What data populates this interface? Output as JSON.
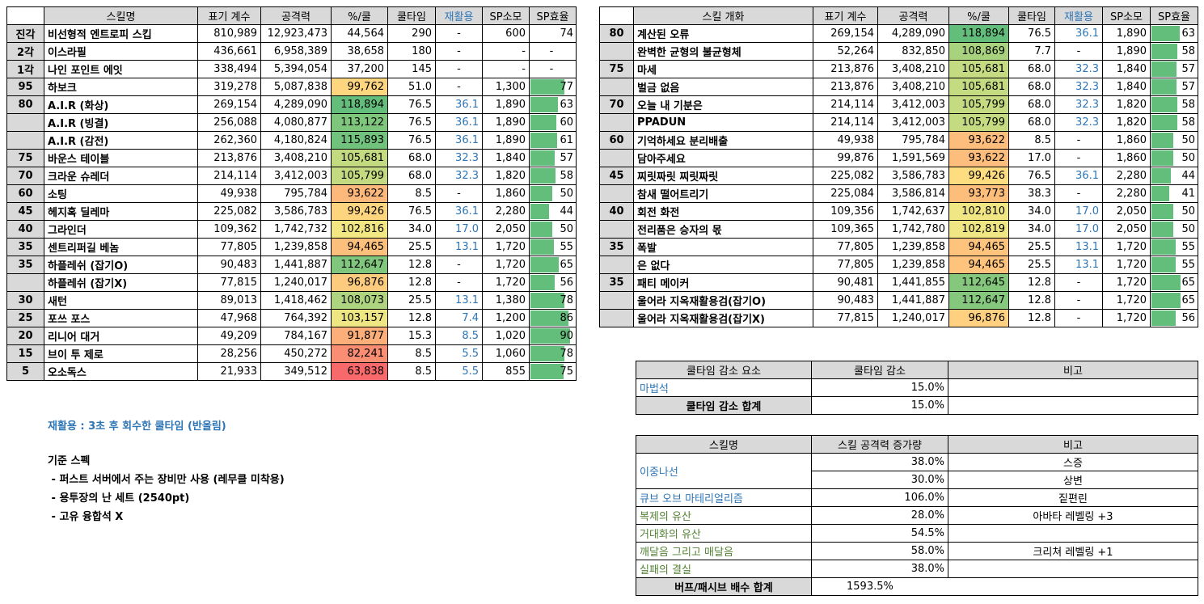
{
  "left_table": {
    "headers": [
      "스킬명",
      "표기 계수",
      "공격력",
      "%/쿨",
      "쿨타임",
      "재활용",
      "SP소모",
      "SP효율"
    ],
    "rows": [
      {
        "lv": "진각",
        "name": "비선형적 엔트로피 스킵",
        "coef": "810,989",
        "atk": "12,923,473",
        "pct": "44,564",
        "cd": "290",
        "re": "-",
        "sp": "600",
        "eff": "74",
        "bar": 0,
        "color": ""
      },
      {
        "lv": "2각",
        "name": "이스라필",
        "coef": "436,661",
        "atk": "6,958,389",
        "pct": "38,658",
        "cd": "180",
        "re": "-",
        "sp": "-",
        "eff": "-",
        "bar": 0,
        "color": ""
      },
      {
        "lv": "1각",
        "name": "나인 포인트 에잇",
        "coef": "338,494",
        "atk": "5,394,054",
        "pct": "37,200",
        "cd": "145",
        "re": "-",
        "sp": "-",
        "eff": "-",
        "bar": 0,
        "color": ""
      },
      {
        "lv": "95",
        "name": "하보크",
        "coef": "319,278",
        "atk": "5,087,838",
        "pct": "99,762",
        "cd": "51.0",
        "re": "-",
        "sp": "1,300",
        "eff": "77",
        "bar": 0.77,
        "color": "#fed680"
      },
      {
        "lv": "80",
        "name": "A.I.R (화상)",
        "coef": "269,154",
        "atk": "4,289,090",
        "pct": "118,894",
        "cd": "76.5",
        "re": "36.1",
        "sp": "1,890",
        "eff": "63",
        "bar": 0.63,
        "color": "#63be7b"
      },
      {
        "lv": "",
        "name": "A.I.R (빙결)",
        "coef": "256,088",
        "atk": "4,080,877",
        "pct": "113,122",
        "cd": "76.5",
        "re": "36.1",
        "sp": "1,890",
        "eff": "60",
        "bar": 0.6,
        "color": "#7fc67d"
      },
      {
        "lv": "",
        "name": "A.I.R (감전)",
        "coef": "262,360",
        "atk": "4,180,824",
        "pct": "115,893",
        "cd": "76.5",
        "re": "36.1",
        "sp": "1,890",
        "eff": "61",
        "bar": 0.61,
        "color": "#71c27c"
      },
      {
        "lv": "75",
        "name": "바운스 테이블",
        "coef": "213,876",
        "atk": "3,408,210",
        "pct": "105,681",
        "cd": "68.0",
        "re": "32.3",
        "sp": "1,840",
        "eff": "57",
        "bar": 0.57,
        "color": "#c3da80"
      },
      {
        "lv": "70",
        "name": "크라운 슈레더",
        "coef": "214,114",
        "atk": "3,412,003",
        "pct": "105,799",
        "cd": "68.0",
        "re": "32.3",
        "sp": "1,820",
        "eff": "58",
        "bar": 0.58,
        "color": "#c3da80"
      },
      {
        "lv": "60",
        "name": "소팅",
        "coef": "49,938",
        "atk": "795,784",
        "pct": "93,622",
        "cd": "8.5",
        "re": "-",
        "sp": "1,860",
        "eff": "50",
        "bar": 0.5,
        "color": "#fdb97b"
      },
      {
        "lv": "45",
        "name": "헤지혹 딜레마",
        "coef": "225,082",
        "atk": "3,586,783",
        "pct": "99,426",
        "cd": "76.5",
        "re": "36.1",
        "sp": "2,280",
        "eff": "44",
        "bar": 0.44,
        "color": "#fdd57f"
      },
      {
        "lv": "40",
        "name": "그라인더",
        "coef": "109,362",
        "atk": "1,742,732",
        "pct": "102,816",
        "cd": "34.0",
        "re": "17.0",
        "sp": "2,050",
        "eff": "50",
        "bar": 0.5,
        "color": "#f2e783"
      },
      {
        "lv": "35",
        "name": "센트리퍼길 베놈",
        "coef": "77,805",
        "atk": "1,239,858",
        "pct": "94,465",
        "cd": "25.5",
        "re": "13.1",
        "sp": "1,720",
        "eff": "55",
        "bar": 0.55,
        "color": "#fdc07c"
      },
      {
        "lv": "35",
        "name": "하플레쉬 (잡기O)",
        "coef": "90,483",
        "atk": "1,441,887",
        "pct": "112,647",
        "cd": "12.8",
        "re": "-",
        "sp": "1,720",
        "eff": "65",
        "bar": 0.65,
        "color": "#80c77d"
      },
      {
        "lv": "",
        "name": "하플레쉬 (잡기X)",
        "coef": "77,815",
        "atk": "1,240,017",
        "pct": "96,876",
        "cd": "12.8",
        "re": "-",
        "sp": "1,720",
        "eff": "56",
        "bar": 0.56,
        "color": "#fdcb7e"
      },
      {
        "lv": "30",
        "name": "새턴",
        "coef": "89,013",
        "atk": "1,418,462",
        "pct": "108,073",
        "cd": "25.5",
        "re": "13.1",
        "sp": "1,380",
        "eff": "78",
        "bar": 0.78,
        "color": "#afd47f"
      },
      {
        "lv": "25",
        "name": "포쓰 포스",
        "coef": "47,968",
        "atk": "764,392",
        "pct": "103,157",
        "cd": "12.8",
        "re": "7.4",
        "sp": "1,200",
        "eff": "86",
        "bar": 0.86,
        "color": "#eee583"
      },
      {
        "lv": "20",
        "name": "리니어 대거",
        "coef": "49,209",
        "atk": "784,167",
        "pct": "91,877",
        "cd": "15.3",
        "re": "8.5",
        "sp": "1,020",
        "eff": "90",
        "bar": 0.9,
        "color": "#fcaf79"
      },
      {
        "lv": "15",
        "name": "브이 투 제로",
        "coef": "28,256",
        "atk": "450,272",
        "pct": "82,241",
        "cd": "8.5",
        "re": "5.5",
        "sp": "1,060",
        "eff": "78",
        "bar": 0.78,
        "color": "#f98e73"
      },
      {
        "lv": "5",
        "name": "오소독스",
        "coef": "21,933",
        "atk": "349,512",
        "pct": "63,838",
        "cd": "8.5",
        "re": "5.5",
        "sp": "855",
        "eff": "75",
        "bar": 0.75,
        "color": "#f8696b"
      }
    ]
  },
  "right_table": {
    "headers": [
      "스킬 개화",
      "표기 계수",
      "공격력",
      "%/쿨",
      "쿨타임",
      "재활용",
      "SP소모",
      "SP효율"
    ],
    "rows": [
      {
        "lv": "80",
        "name": "계산된 오류",
        "coef": "269,154",
        "atk": "4,289,090",
        "pct": "118,894",
        "cd": "76.5",
        "re": "36.1",
        "sp": "1,890",
        "eff": "63",
        "bar": 0.63,
        "color": "#63be7b"
      },
      {
        "lv": "",
        "name": "완벽한 균형의 불균형체",
        "coef": "52,264",
        "atk": "832,850",
        "pct": "108,869",
        "cd": "7.7",
        "re": "-",
        "sp": "1,890",
        "eff": "58",
        "bar": 0.58,
        "color": "#a9d27f"
      },
      {
        "lv": "75",
        "name": "마세",
        "coef": "213,876",
        "atk": "3,408,210",
        "pct": "105,681",
        "cd": "68.0",
        "re": "32.3",
        "sp": "1,840",
        "eff": "57",
        "bar": 0.57,
        "color": "#c5db81"
      },
      {
        "lv": "",
        "name": "벌금 없음",
        "coef": "213,876",
        "atk": "3,408,210",
        "pct": "105,681",
        "cd": "68.0",
        "re": "32.3",
        "sp": "1,840",
        "eff": "57",
        "bar": 0.57,
        "color": "#c5db81"
      },
      {
        "lv": "70",
        "name": "오늘 내 기분은",
        "coef": "214,114",
        "atk": "3,412,003",
        "pct": "105,799",
        "cd": "68.0",
        "re": "32.3",
        "sp": "1,820",
        "eff": "58",
        "bar": 0.58,
        "color": "#c4db81"
      },
      {
        "lv": "",
        "name": "PPADUN",
        "coef": "214,114",
        "atk": "3,412,003",
        "pct": "105,799",
        "cd": "68.0",
        "re": "32.3",
        "sp": "1,820",
        "eff": "58",
        "bar": 0.58,
        "color": "#c4db81"
      },
      {
        "lv": "60",
        "name": "기억하세요 분리배출",
        "coef": "49,938",
        "atk": "795,784",
        "pct": "93,622",
        "cd": "8.5",
        "re": "-",
        "sp": "1,860",
        "eff": "50",
        "bar": 0.5,
        "color": "#fdbd7c"
      },
      {
        "lv": "",
        "name": "담아주세요",
        "coef": "99,876",
        "atk": "1,591,569",
        "pct": "93,622",
        "cd": "17.0",
        "re": "-",
        "sp": "1,860",
        "eff": "50",
        "bar": 0.5,
        "color": "#fdbd7c"
      },
      {
        "lv": "45",
        "name": "찌릿짜릿 찌릿짜릿",
        "coef": "225,082",
        "atk": "3,586,783",
        "pct": "99,426",
        "cd": "76.5",
        "re": "36.1",
        "sp": "2,280",
        "eff": "44",
        "bar": 0.44,
        "color": "#fedd81"
      },
      {
        "lv": "",
        "name": "참새 떨어트리기",
        "coef": "225,084",
        "atk": "3,586,814",
        "pct": "93,773",
        "cd": "38.3",
        "re": "-",
        "sp": "2,280",
        "eff": "41",
        "bar": 0.41,
        "color": "#fdbe7c"
      },
      {
        "lv": "40",
        "name": "회전 화전",
        "coef": "109,356",
        "atk": "1,742,637",
        "pct": "102,810",
        "cd": "34.0",
        "re": "17.0",
        "sp": "2,050",
        "eff": "50",
        "bar": 0.5,
        "color": "#f0e784"
      },
      {
        "lv": "",
        "name": "전리품은 승자의 몫",
        "coef": "109,365",
        "atk": "1,742,780",
        "pct": "102,819",
        "cd": "34.0",
        "re": "17.0",
        "sp": "2,050",
        "eff": "50",
        "bar": 0.5,
        "color": "#f0e784"
      },
      {
        "lv": "35",
        "name": "폭발",
        "coef": "77,805",
        "atk": "1,239,858",
        "pct": "94,465",
        "cd": "25.5",
        "re": "13.1",
        "sp": "1,720",
        "eff": "55",
        "bar": 0.55,
        "color": "#fec47d"
      },
      {
        "lv": "",
        "name": "은 없다",
        "coef": "77,805",
        "atk": "1,239,858",
        "pct": "94,465",
        "cd": "25.5",
        "re": "13.1",
        "sp": "1,720",
        "eff": "55",
        "bar": 0.55,
        "color": "#fec47d"
      },
      {
        "lv": "35",
        "name": "패티 메이커",
        "coef": "90,481",
        "atk": "1,441,855",
        "pct": "112,645",
        "cd": "12.8",
        "re": "-",
        "sp": "1,720",
        "eff": "65",
        "bar": 0.65,
        "color": "#85c87d"
      },
      {
        "lv": "",
        "name": "울어라 지옥재활용검(잡기O)",
        "coef": "90,483",
        "atk": "1,441,887",
        "pct": "112,647",
        "cd": "12.8",
        "re": "-",
        "sp": "1,720",
        "eff": "65",
        "bar": 0.65,
        "color": "#85c87d"
      },
      {
        "lv": "",
        "name": "울어라 지옥재활용검(잡기X)",
        "coef": "77,815",
        "atk": "1,240,017",
        "pct": "96,876",
        "cd": "12.8",
        "re": "-",
        "sp": "1,720",
        "eff": "56",
        "bar": 0.56,
        "color": "#fed07f"
      }
    ]
  },
  "cooldown_table": {
    "headers": [
      "쿨타임 감소 요소",
      "쿨타임 감소",
      "비고"
    ],
    "rows": [
      {
        "name": "마법석",
        "value": "15.0%",
        "note": ""
      }
    ],
    "total_label": "쿨타임 감소 합계",
    "total_value": "15.0%"
  },
  "buff_table": {
    "headers": [
      "스킬명",
      "스킬 공격력 증가량",
      "비고"
    ],
    "rows": [
      {
        "name": "이중나선",
        "value": "38.0%",
        "note": "스증",
        "cls": "blue",
        "span": 2
      },
      {
        "name": "",
        "value": "30.0%",
        "note": "상변",
        "cls": "blue",
        "span": 0
      },
      {
        "name": "큐브 오브 마테리얼리즘",
        "value": "106.0%",
        "note": "짙편린",
        "cls": "blue",
        "span": 1
      },
      {
        "name": "복제의 유산",
        "value": "28.0%",
        "note": "아바타 레벨링 +3",
        "cls": "green",
        "span": 1
      },
      {
        "name": "거대화의 유산",
        "value": "54.5%",
        "note": "",
        "cls": "green",
        "span": 1
      },
      {
        "name": "깨달음 그리고 매달음",
        "value": "58.0%",
        "note": "크리쳐 레벨링 +1",
        "cls": "green",
        "span": 1
      },
      {
        "name": "실패의 결실",
        "value": "38.0%",
        "note": "",
        "cls": "green",
        "span": 1
      }
    ],
    "total_label": "버프/패시브 배수 합계",
    "total_value": "1593.5%"
  },
  "notes": {
    "recycle": "재활용 : 3초 후 회수한 쿨타임 (반올림)",
    "spec_title": "기준 스펙",
    "spec_items": [
      " - 퍼스트 서버에서 주는 장비만 사용 (레무클 미착용)",
      " - 용투장의 난 세트 (2540pt)",
      " - 고유 융합석 X"
    ]
  },
  "colors": {
    "header_bg": "#d9d9d9",
    "accent_blue": "#2e75b6",
    "accent_green": "#548235",
    "bar_green": "#63be7b"
  }
}
